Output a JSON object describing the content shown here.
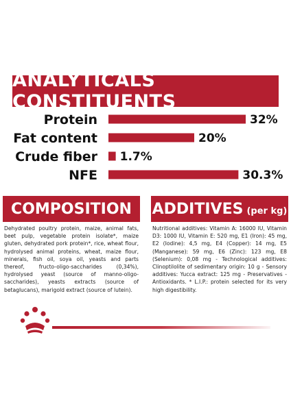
{
  "header": {
    "title": "ANALYTICALS CONSTITUENTS"
  },
  "chart_data": {
    "type": "bar",
    "orientation": "horizontal",
    "categories": [
      "Protein",
      "Fat content",
      "Crude fiber",
      "NFE"
    ],
    "values": [
      32,
      20,
      1.7,
      30.3
    ],
    "value_labels": [
      "32%",
      "20%",
      "1.7%",
      "30.3%"
    ],
    "xlim": [
      0,
      35
    ],
    "grid": false,
    "bar_color": "#b41f30"
  },
  "composition": {
    "title": "COMPOSITION",
    "text": "Dehydrated poultry protein, maize, animal fats, beet pulp, vegetable protein isolate*, maize gluten, dehydrated pork protein*, rice, wheat flour, hydrolysed animal proteins, wheat, maize flour, minerals, fish oil, soya oil, yeasts and parts thereof, fructo-oligo-saccharides (0,34%), hydrolysed yeast (source of manno-oligo-saccharides), yeasts extracts (source of betaglucans), marigold extract (source of lutein)."
  },
  "additives": {
    "title": "ADDITIVES",
    "subtitle": "(per kg)",
    "text": "Nutritional additives: Vitamin A: 16000 IU, Vitamin D3: 1000 IU, Vitamin E: 520 mg, E1 (Iron): 45 mg, E2 (Iodine): 4,5 mg, E4 (Copper): 14 mg, E5 (Manganese): 59 mg, E6 (Zinc): 123 mg, E8 (Selenium): 0,08 mg - Technological additives: Clinoptilolite of sedimentary origin: 10 g - Sensory additives: Yucca extract: 125 mg - Preservatives - Antioxidants. * L.I.P.: protein selected for its very high digestibility."
  },
  "logo": {
    "name": "royal-canin-crown-logo",
    "color": "#b41f30"
  }
}
